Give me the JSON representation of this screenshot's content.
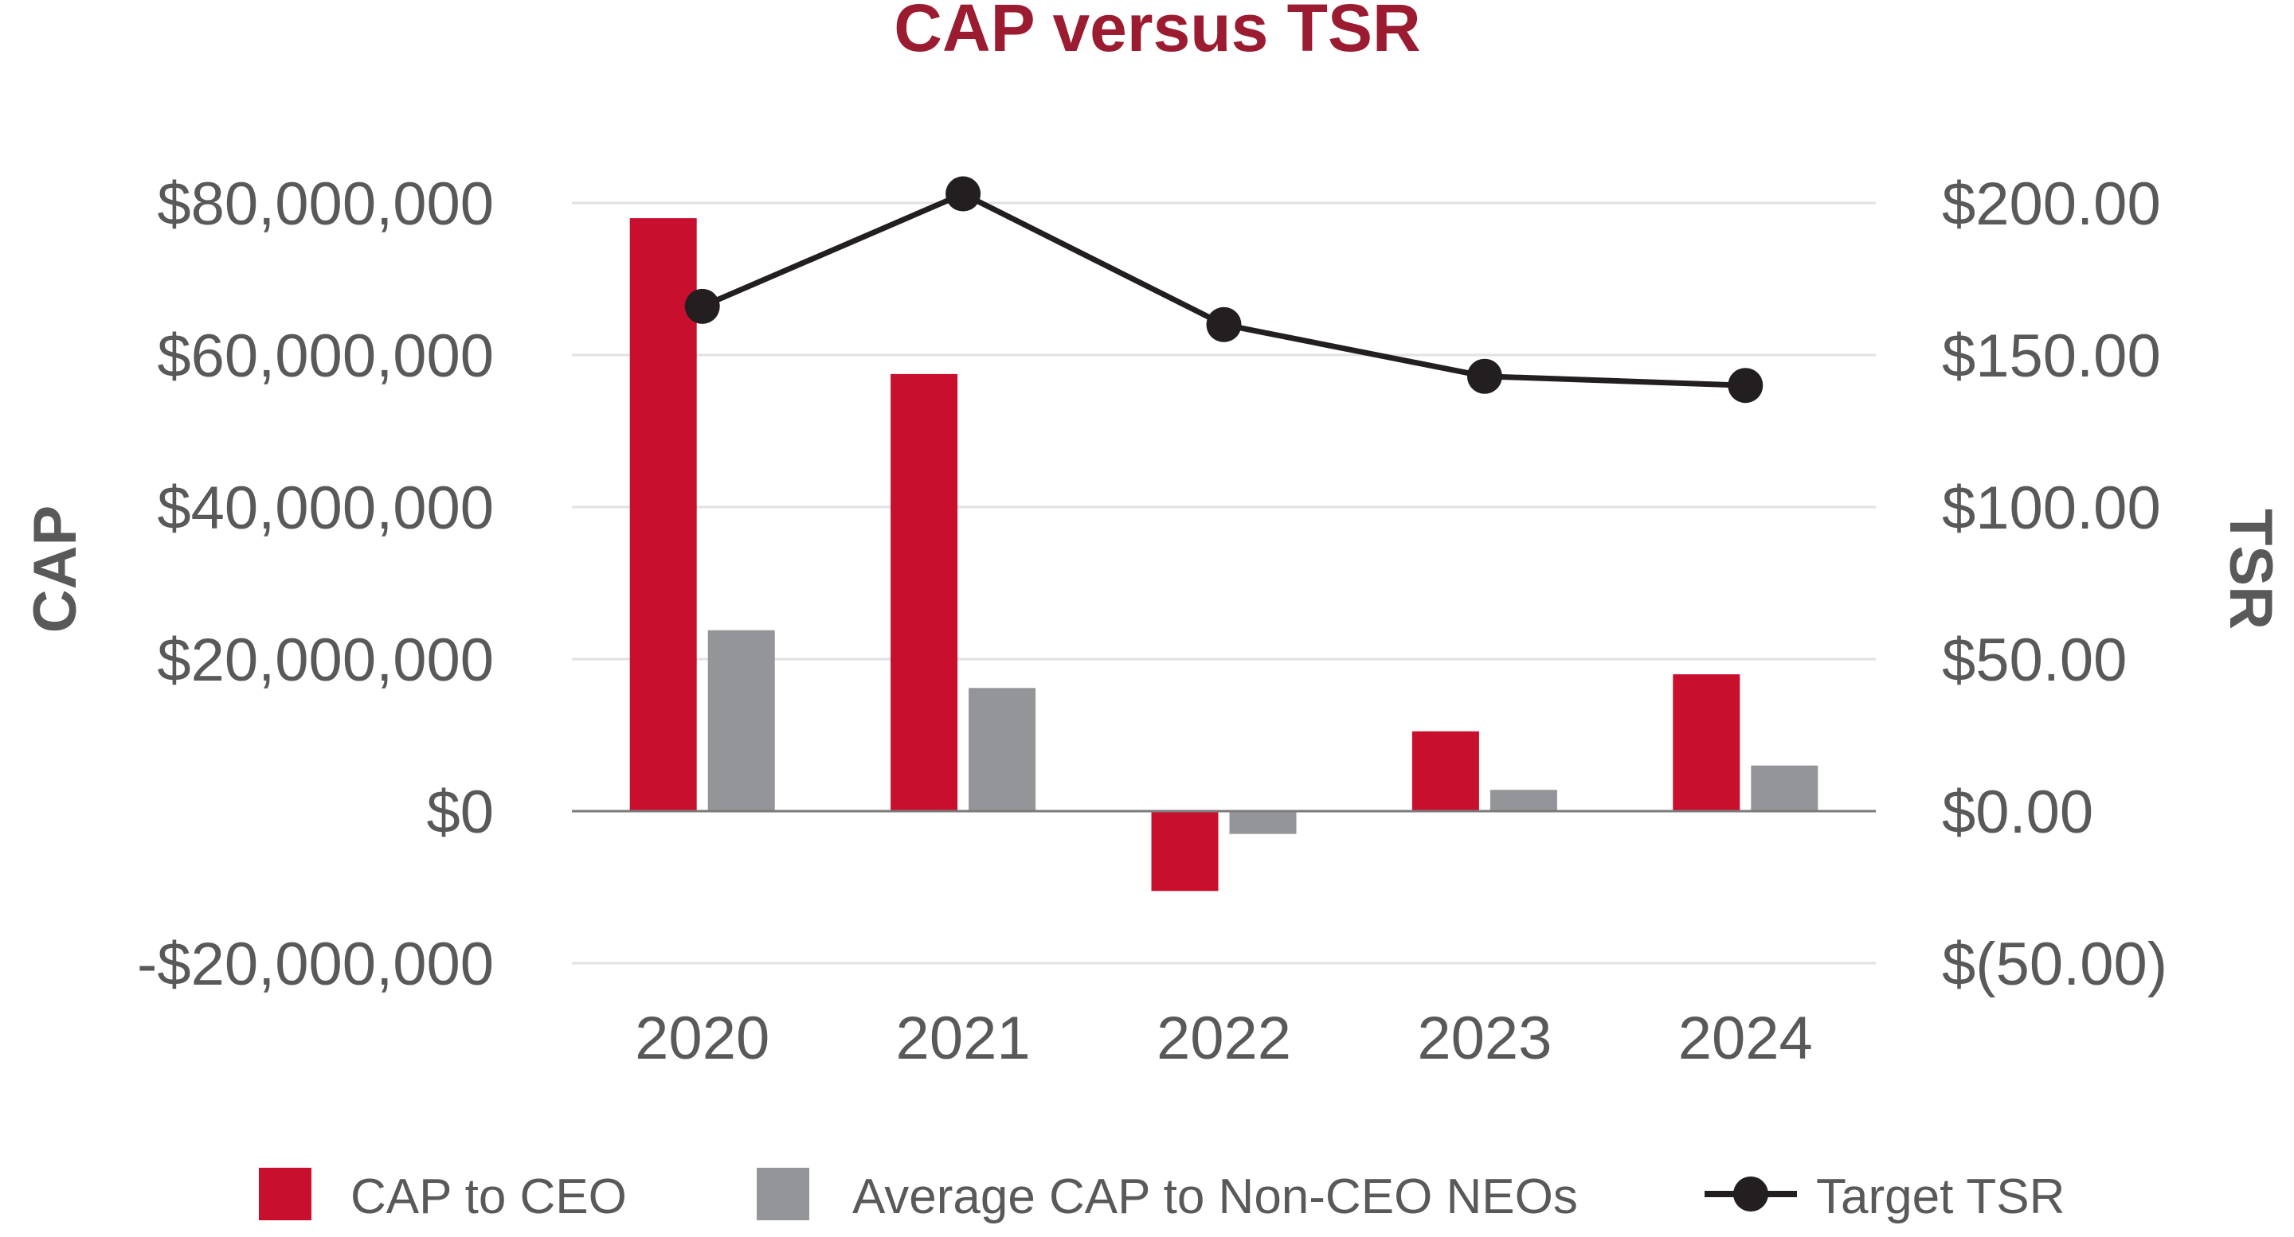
{
  "chart_data": {
    "type": "bar",
    "title": "CAP versus TSR",
    "title_color": "#9b1b30",
    "categories": [
      "2020",
      "2021",
      "2022",
      "2023",
      "2024"
    ],
    "y_left": {
      "label": "CAP",
      "range": [
        -20000000,
        80000000
      ],
      "ticks": [
        80000000,
        60000000,
        40000000,
        20000000,
        0,
        -20000000
      ],
      "tick_labels": [
        "$80,000,000",
        "$60,000,000",
        "$40,000,000",
        "$20,000,000",
        "$0",
        "-$20,000,000"
      ]
    },
    "y_right": {
      "label": "TSR",
      "range": [
        -50,
        200
      ],
      "ticks": [
        200,
        150,
        100,
        50,
        0,
        -50
      ],
      "tick_labels": [
        "$200.00",
        "$150.00",
        "$100.00",
        "$50.00",
        "$0.00",
        "$(50.00)"
      ]
    },
    "series": [
      {
        "name": "CAP to CEO",
        "type": "bar",
        "axis": "left",
        "color": "#c8102e",
        "values": [
          78000000,
          57500000,
          -10500000,
          10500000,
          18000000
        ]
      },
      {
        "name": "Average CAP to Non-CEO NEOs",
        "type": "bar",
        "axis": "left",
        "color": "#939598",
        "values": [
          23800000,
          16200000,
          -3000000,
          2800000,
          6000000
        ]
      },
      {
        "name": "Target TSR",
        "type": "line",
        "axis": "right",
        "color": "#231f20",
        "values": [
          166,
          203,
          160,
          143,
          140
        ]
      }
    ],
    "grid": true,
    "legend_position": "bottom"
  }
}
